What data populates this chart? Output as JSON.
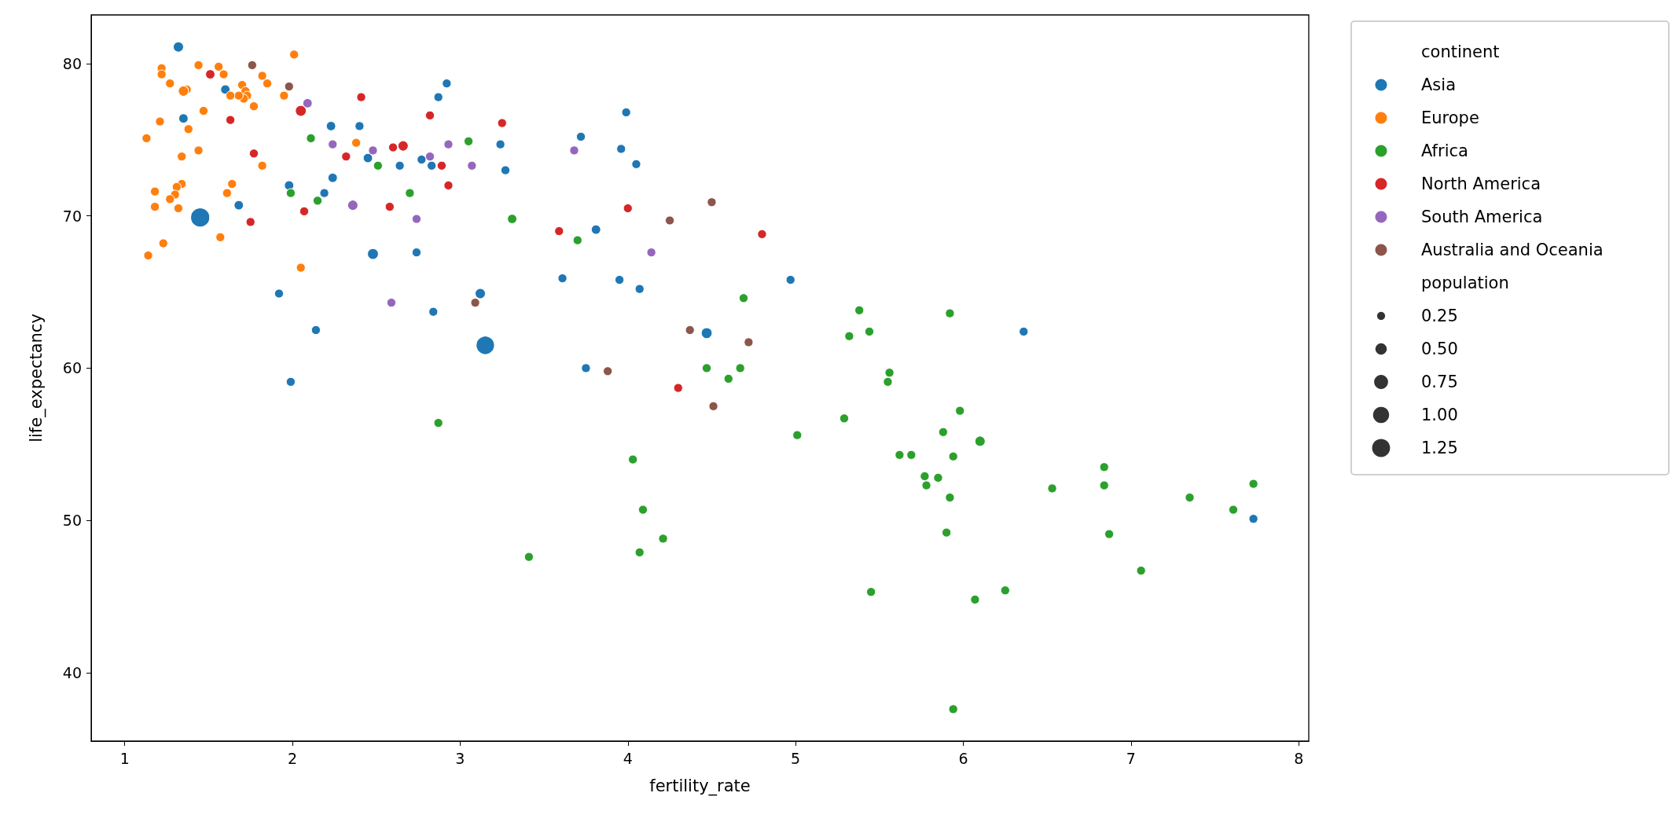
{
  "chart_data": {
    "type": "bubble",
    "xlabel": "fertility_rate",
    "ylabel": "life_expectancy",
    "xlim": [
      0.8,
      8.06
    ],
    "ylim": [
      35.5,
      83.2
    ],
    "xticks": [
      1,
      2,
      3,
      4,
      5,
      6,
      7,
      8
    ],
    "yticks": [
      40,
      50,
      60,
      70,
      80
    ],
    "grid": false,
    "legend": "right",
    "legend_title": "continent",
    "marker": "circle",
    "annotations": [
      "population"
    ],
    "size_legend": [
      {
        "value": 0.25,
        "label": "0.25"
      },
      {
        "value": 0.5,
        "label": "0.50"
      },
      {
        "value": 0.75,
        "label": "0.75"
      },
      {
        "value": 1,
        "label": "1.00"
      },
      {
        "value": 1.25,
        "label": "1.25"
      }
    ],
    "series": [
      {
        "name": "Asia",
        "color": "#1f77b4",
        "x": [
          1.32,
          1.6,
          1.35,
          2.92,
          2.87,
          2.23,
          2.4,
          3.24,
          3.27,
          2.45,
          2.64,
          2.77,
          2.83,
          2.24,
          1.98,
          2.19,
          1.68,
          1.45,
          2.48,
          2.74,
          1.92,
          3.12,
          2.84,
          2.14,
          3.15,
          1.99,
          3.99,
          3.72,
          3.96,
          4.05,
          3.81,
          3.61,
          3.95,
          4.07,
          4.97,
          4.47,
          3.75,
          6.36,
          7.73
        ],
        "values": [
          81.1,
          78.3,
          76.4,
          78.7,
          77.8,
          75.9,
          75.9,
          74.7,
          73.0,
          73.8,
          73.3,
          73.7,
          73.3,
          72.5,
          72.0,
          71.5,
          70.7,
          69.9,
          67.5,
          67.6,
          64.9,
          64.9,
          63.7,
          62.5,
          61.5,
          59.1,
          76.8,
          75.2,
          74.4,
          73.4,
          69.1,
          65.9,
          65.8,
          65.2,
          65.8,
          62.3,
          60.0,
          62.4,
          50.1
        ],
        "sizes": [
          0.4,
          0.33,
          0.33,
          0.3,
          0.3,
          0.33,
          0.3,
          0.3,
          0.3,
          0.33,
          0.3,
          0.3,
          0.3,
          0.33,
          0.33,
          0.3,
          0.33,
          1.4,
          0.45,
          0.3,
          0.3,
          0.4,
          0.3,
          0.3,
          1.3,
          0.3,
          0.3,
          0.3,
          0.3,
          0.3,
          0.33,
          0.3,
          0.3,
          0.3,
          0.3,
          0.45,
          0.3,
          0.3,
          0.3
        ]
      },
      {
        "name": "Europe",
        "color": "#ff7f0e",
        "x": [
          2.01,
          1.22,
          1.22,
          1.44,
          1.56,
          1.59,
          1.82,
          1.85,
          1.27,
          1.37,
          1.35,
          1.7,
          1.72,
          1.73,
          1.71,
          1.68,
          1.63,
          1.95,
          1.77,
          1.47,
          1.21,
          1.38,
          1.13,
          2.38,
          1.44,
          1.34,
          1.82,
          1.34,
          1.64,
          1.31,
          1.18,
          1.3,
          1.27,
          1.61,
          1.18,
          1.32,
          1.57,
          1.23,
          1.14,
          2.05
        ],
        "values": [
          80.6,
          79.7,
          79.3,
          79.9,
          79.8,
          79.3,
          79.2,
          78.7,
          78.7,
          78.3,
          78.2,
          78.6,
          78.2,
          77.9,
          77.7,
          77.9,
          77.9,
          77.9,
          77.2,
          76.9,
          76.2,
          75.7,
          75.1,
          74.8,
          74.3,
          73.9,
          73.3,
          72.1,
          72.1,
          71.9,
          71.6,
          71.4,
          71.1,
          71.5,
          70.6,
          70.5,
          68.6,
          68.2,
          67.4,
          66.6
        ],
        "sizes": [
          0.3,
          0.3,
          0.3,
          0.3,
          0.3,
          0.3,
          0.3,
          0.3,
          0.3,
          0.3,
          0.4,
          0.3,
          0.3,
          0.3,
          0.3,
          0.3,
          0.3,
          0.3,
          0.3,
          0.3,
          0.3,
          0.3,
          0.3,
          0.3,
          0.3,
          0.3,
          0.3,
          0.3,
          0.3,
          0.3,
          0.3,
          0.3,
          0.3,
          0.3,
          0.3,
          0.3,
          0.3,
          0.3,
          0.3,
          0.3
        ]
      },
      {
        "name": "Africa",
        "color": "#2ca02c",
        "x": [
          2.11,
          2.51,
          3.05,
          1.99,
          2.15,
          2.7,
          3.31,
          3.7,
          4.69,
          5.38,
          5.32,
          5.44,
          4.47,
          4.67,
          5.92,
          4.6,
          5.56,
          5.55,
          5.98,
          5.29,
          5.01,
          5.88,
          6.1,
          5.62,
          5.69,
          5.94,
          5.77,
          5.85,
          5.78,
          5.92,
          6.84,
          6.84,
          6.53,
          7.73,
          7.35,
          7.61,
          5.9,
          6.87,
          7.06,
          5.45,
          6.25,
          6.07,
          5.94,
          2.87,
          4.03,
          4.09,
          4.21,
          4.07,
          3.41
        ],
        "values": [
          75.1,
          73.3,
          74.9,
          71.5,
          71.0,
          71.5,
          69.8,
          68.4,
          64.6,
          63.8,
          62.1,
          62.4,
          60.0,
          60.0,
          63.6,
          59.3,
          59.7,
          59.1,
          57.2,
          56.7,
          55.6,
          55.8,
          55.2,
          54.3,
          54.3,
          54.2,
          52.9,
          52.8,
          52.3,
          51.5,
          53.5,
          52.3,
          52.1,
          52.4,
          51.5,
          50.7,
          49.2,
          49.1,
          46.7,
          45.3,
          45.4,
          44.8,
          37.6,
          56.4,
          54.0,
          50.7,
          48.8,
          47.9,
          47.6
        ],
        "sizes": [
          0.3,
          0.3,
          0.3,
          0.3,
          0.3,
          0.3,
          0.33,
          0.3,
          0.3,
          0.3,
          0.3,
          0.3,
          0.3,
          0.3,
          0.3,
          0.3,
          0.3,
          0.3,
          0.3,
          0.3,
          0.3,
          0.3,
          0.4,
          0.3,
          0.3,
          0.3,
          0.3,
          0.3,
          0.3,
          0.3,
          0.3,
          0.3,
          0.3,
          0.3,
          0.3,
          0.3,
          0.3,
          0.3,
          0.3,
          0.3,
          0.3,
          0.3,
          0.3,
          0.3,
          0.3,
          0.3,
          0.3,
          0.3,
          0.3
        ]
      },
      {
        "name": "North America",
        "color": "#d62728",
        "x": [
          1.51,
          2.05,
          2.41,
          1.63,
          1.77,
          2.82,
          3.25,
          2.32,
          2.6,
          2.66,
          2.89,
          2.93,
          2.58,
          2.07,
          1.75,
          3.59,
          4.0,
          4.8,
          4.3
        ],
        "values": [
          79.3,
          76.9,
          77.8,
          76.3,
          74.1,
          76.6,
          76.1,
          73.9,
          74.5,
          74.6,
          73.3,
          72.0,
          70.6,
          70.3,
          69.6,
          69.0,
          70.5,
          68.8,
          58.7
        ],
        "sizes": [
          0.33,
          0.45,
          0.3,
          0.3,
          0.3,
          0.3,
          0.3,
          0.3,
          0.3,
          0.4,
          0.3,
          0.3,
          0.3,
          0.3,
          0.3,
          0.3,
          0.3,
          0.3,
          0.3
        ]
      },
      {
        "name": "South America",
        "color": "#9467bd",
        "x": [
          2.09,
          2.24,
          2.48,
          2.82,
          2.93,
          3.07,
          2.36,
          2.74,
          2.59,
          3.68,
          4.14
        ],
        "values": [
          77.4,
          74.7,
          74.3,
          73.9,
          74.7,
          73.3,
          70.7,
          69.8,
          64.3,
          74.3,
          67.6
        ],
        "sizes": [
          0.33,
          0.3,
          0.3,
          0.3,
          0.3,
          0.3,
          0.4,
          0.3,
          0.3,
          0.3,
          0.3
        ]
      },
      {
        "name": "Australia and Oceania",
        "color": "#8c564b",
        "x": [
          1.76,
          1.98,
          3.09,
          4.5,
          4.25,
          4.37,
          4.72,
          3.88,
          4.51
        ],
        "values": [
          79.9,
          78.5,
          64.3,
          70.9,
          69.7,
          62.5,
          61.7,
          59.8,
          57.5
        ],
        "sizes": [
          0.3,
          0.3,
          0.3,
          0.3,
          0.3,
          0.3,
          0.3,
          0.3,
          0.3
        ]
      }
    ]
  }
}
